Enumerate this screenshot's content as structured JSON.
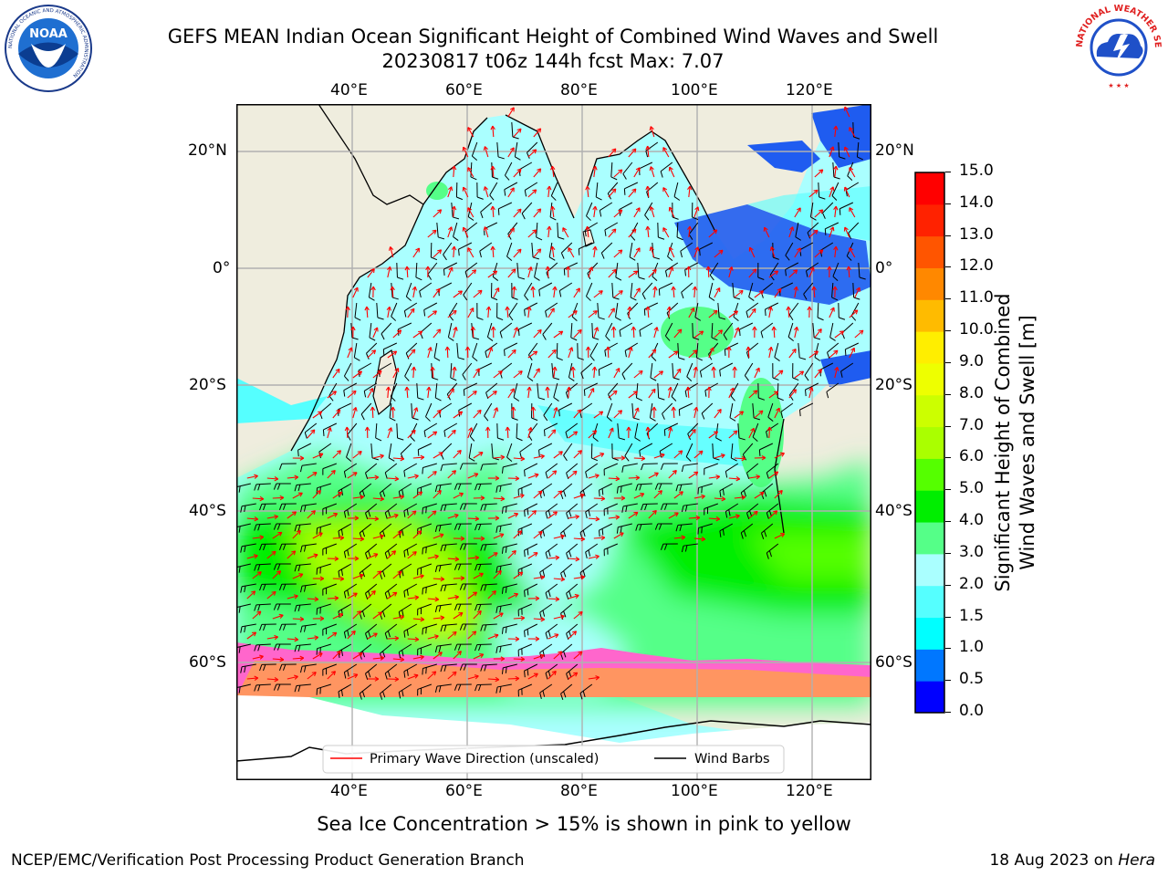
{
  "header": {
    "title_line1": "GEFS MEAN Indian Ocean Significant Height of Combined Wind Waves and Swell",
    "title_line2": "20230817 t06z 144h fcst   Max: 7.07",
    "left_logo": {
      "name": "NOAA",
      "ring_text": "NATIONAL OCEANIC AND ATMOSPHERIC ADMINISTRATION",
      "bottom_text": "U.S. DEPARTMENT OF COMMERCE"
    },
    "right_logo": {
      "ring_text": "NATIONAL WEATHER SERVICE"
    }
  },
  "map": {
    "lon_labels": [
      "40°E",
      "60°E",
      "80°E",
      "100°E",
      "120°E"
    ],
    "lat_labels_left": [
      "20°N",
      "0°",
      "20°S",
      "40°S",
      "60°S"
    ],
    "lat_labels_right": [
      "20°N",
      "0°",
      "20°S",
      "40°S",
      "60°S"
    ],
    "lon_range": [
      20,
      130
    ],
    "lat_range": [
      -78,
      28
    ],
    "colors": {
      "land": "#efedde",
      "ocean_base": "#aaffff",
      "ice": "#ff66cc",
      "arrow": "#ff0000",
      "barb": "#000000"
    }
  },
  "legend": {
    "items": [
      {
        "label": "Primary Wave Direction (unscaled)",
        "color": "#ff0000"
      },
      {
        "label": "Wind Barbs",
        "color": "#000000"
      }
    ]
  },
  "colorbar": {
    "label_line1": "Significant Height of Combined",
    "label_line2": "Wind Waves and Swell [m]",
    "ticks": [
      "0.0",
      "0.5",
      "1.0",
      "1.5",
      "2.0",
      "3.0",
      "4.0",
      "5.0",
      "6.0",
      "7.0",
      "8.0",
      "9.0",
      "10.0",
      "11.0",
      "12.0",
      "13.0",
      "14.0",
      "15.0"
    ],
    "colors": [
      "#0000ff",
      "#0077ff",
      "#00ffff",
      "#55ffff",
      "#aaffff",
      "#55ff88",
      "#00ee00",
      "#55ff00",
      "#aaff00",
      "#ccff00",
      "#eeff00",
      "#ffee00",
      "#ffbb00",
      "#ff8800",
      "#ff5500",
      "#ff2200",
      "#ff0000"
    ]
  },
  "caption": "Sea Ice Concentration > 15% is shown in pink to yellow",
  "footer": {
    "left": "NCEP/EMC/Verification Post Processing Product Generation Branch",
    "right_date": "18 Aug 2023 on",
    "right_host": "Hera"
  }
}
